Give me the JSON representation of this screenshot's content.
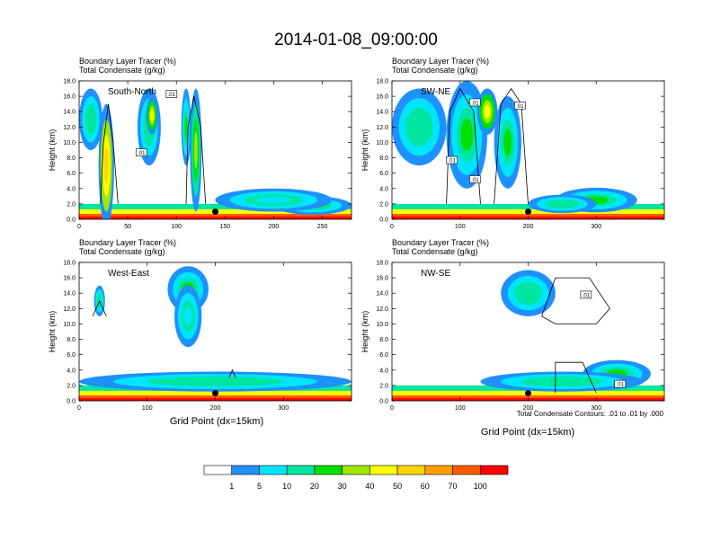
{
  "title": "2014-01-08_09:00:00",
  "panel_headers": {
    "line1_label": "Boundary Layer Tracer",
    "line1_unit": "(%)",
    "line2_label": "Total Condensate",
    "line2_unit": "(g/kg)"
  },
  "xlabel": "Grid Point (dx=15km)",
  "contour_note": "Total Condensate Contours: .01 to .01 by .000",
  "colorbar": {
    "levels": [
      "1",
      "5",
      "10",
      "20",
      "30",
      "40",
      "50",
      "60",
      "70",
      "100"
    ],
    "colors": [
      "#ffffff",
      "#1e90ff",
      "#00e5ff",
      "#00e5a0",
      "#00e000",
      "#a0e600",
      "#ffff00",
      "#ffd400",
      "#ffa000",
      "#ff5a00",
      "#ff0000"
    ]
  },
  "chart_data": [
    {
      "type": "heatmap",
      "subtitle": "South-North",
      "xlim": [
        0,
        280
      ],
      "xticks": [
        "0",
        "50",
        "100",
        "150",
        "200",
        "250"
      ],
      "xtick_values": [
        0,
        50,
        100,
        150,
        200,
        250
      ],
      "ylabel": "Height (km)",
      "ylim": [
        0,
        18
      ],
      "yticks": [
        "0.0",
        "2.0",
        "4.0",
        "6.0",
        "8.0",
        "10.0",
        "12.0",
        "14.0",
        "16.0",
        "18.0"
      ],
      "marker": {
        "x": 140,
        "y": 1.0
      },
      "contour_labels": [
        {
          "text": ".01",
          "x": 95,
          "y": 16.3
        },
        {
          "text": ".01",
          "x": 64,
          "y": 8.7
        }
      ],
      "blobs": [
        {
          "x": 28,
          "y": 7,
          "rx": 8,
          "ry": 8,
          "level": 7
        },
        {
          "x": 12,
          "y": 13,
          "rx": 12,
          "ry": 4,
          "level": 3
        },
        {
          "x": 72,
          "y": 12,
          "rx": 12,
          "ry": 5,
          "level": 3
        },
        {
          "x": 75,
          "y": 13.5,
          "rx": 6,
          "ry": 2.5,
          "level": 6
        },
        {
          "x": 120,
          "y": 9,
          "rx": 6,
          "ry": 8,
          "level": 5
        },
        {
          "x": 110,
          "y": 12,
          "rx": 5,
          "ry": 5,
          "level": 4
        },
        {
          "x": 240,
          "y": 1.8,
          "rx": 40,
          "ry": 1.2,
          "level": 4
        },
        {
          "x": 200,
          "y": 2.5,
          "rx": 60,
          "ry": 1.5,
          "level": 2
        }
      ],
      "contours": [
        {
          "points": [
            [
              22,
              2
            ],
            [
              25,
              10
            ],
            [
              30,
              15
            ],
            [
              35,
              10
            ],
            [
              40,
              2
            ]
          ]
        },
        {
          "points": [
            [
              110,
              2
            ],
            [
              112,
              12
            ],
            [
              118,
              16
            ],
            [
              125,
              12
            ],
            [
              130,
              2
            ]
          ]
        }
      ]
    },
    {
      "type": "heatmap",
      "subtitle": "SW-NE",
      "xlim": [
        0,
        400
      ],
      "xticks": [
        "0",
        "100",
        "200",
        "300"
      ],
      "xtick_values": [
        0,
        100,
        200,
        300
      ],
      "ylabel": "Height (km)",
      "ylim": [
        0,
        18
      ],
      "yticks": [
        "0.0",
        "2.0",
        "4.0",
        "6.0",
        "8.0",
        "10.0",
        "12.0",
        "14.0",
        "16.0",
        "18.0"
      ],
      "marker": {
        "x": 200,
        "y": 1.0
      },
      "contour_labels": [
        {
          "text": ".01",
          "x": 122,
          "y": 15.2
        },
        {
          "text": ".01",
          "x": 188,
          "y": 14.8
        },
        {
          "text": ".01",
          "x": 88,
          "y": 7.7
        },
        {
          "text": ".01",
          "x": 122,
          "y": 5.2
        }
      ],
      "blobs": [
        {
          "x": 40,
          "y": 12,
          "rx": 40,
          "ry": 5,
          "level": 3
        },
        {
          "x": 110,
          "y": 11,
          "rx": 30,
          "ry": 7,
          "level": 4
        },
        {
          "x": 140,
          "y": 14,
          "rx": 15,
          "ry": 3,
          "level": 6
        },
        {
          "x": 170,
          "y": 10,
          "rx": 20,
          "ry": 6,
          "level": 4
        },
        {
          "x": 300,
          "y": 2.5,
          "rx": 60,
          "ry": 1.6,
          "level": 4
        },
        {
          "x": 250,
          "y": 2.0,
          "rx": 50,
          "ry": 1.2,
          "level": 3
        }
      ],
      "contours": [
        {
          "points": [
            [
              80,
              2
            ],
            [
              85,
              14
            ],
            [
              100,
              17
            ],
            [
              120,
              14
            ],
            [
              130,
              2
            ]
          ]
        },
        {
          "points": [
            [
              150,
              2
            ],
            [
              160,
              15
            ],
            [
              175,
              17
            ],
            [
              190,
              15
            ],
            [
              200,
              2
            ]
          ]
        }
      ]
    },
    {
      "type": "heatmap",
      "subtitle": "West-East",
      "xlim": [
        0,
        400
      ],
      "xticks": [
        "0",
        "100",
        "200",
        "300"
      ],
      "xtick_values": [
        0,
        100,
        200,
        300
      ],
      "ylabel": "Height (km)",
      "ylim": [
        0,
        18
      ],
      "yticks": [
        "0.0",
        "2.0",
        "4.0",
        "6.0",
        "8.0",
        "10.0",
        "12.0",
        "14.0",
        "16.0",
        "18.0"
      ],
      "marker": {
        "x": 200,
        "y": 1.0
      },
      "contour_labels": [],
      "blobs": [
        {
          "x": 160,
          "y": 14.5,
          "rx": 30,
          "ry": 3,
          "level": 4
        },
        {
          "x": 160,
          "y": 11,
          "rx": 20,
          "ry": 4,
          "level": 2
        },
        {
          "x": 30,
          "y": 13,
          "rx": 8,
          "ry": 2,
          "level": 3
        },
        {
          "x": 200,
          "y": 2.5,
          "rx": 200,
          "ry": 1.3,
          "level": 3
        }
      ],
      "contours": [
        {
          "points": [
            [
              20,
              11
            ],
            [
              30,
              13
            ],
            [
              40,
              11
            ]
          ]
        },
        {
          "points": [
            [
              220,
              3
            ],
            [
              225,
              4
            ],
            [
              230,
              3
            ]
          ]
        }
      ]
    },
    {
      "type": "heatmap",
      "subtitle": "NW-SE",
      "xlim": [
        0,
        400
      ],
      "xticks": [
        "0",
        "100",
        "200",
        "300"
      ],
      "xtick_values": [
        0,
        100,
        200,
        300
      ],
      "ylabel": "Height (km)",
      "ylim": [
        0,
        18
      ],
      "yticks": [
        "0.0",
        "2.0",
        "4.0",
        "6.0",
        "8.0",
        "10.0",
        "12.0",
        "14.0",
        "16.0",
        "18.0"
      ],
      "marker": {
        "x": 200,
        "y": 1.0
      },
      "contour_labels": [
        {
          "text": ".01",
          "x": 285,
          "y": 13.8
        },
        {
          "text": ".01",
          "x": 335,
          "y": 2.2
        }
      ],
      "blobs": [
        {
          "x": 200,
          "y": 14,
          "rx": 40,
          "ry": 3,
          "level": 3
        },
        {
          "x": 330,
          "y": 3.5,
          "rx": 50,
          "ry": 1.8,
          "level": 4
        },
        {
          "x": 250,
          "y": 2.5,
          "rx": 120,
          "ry": 1.3,
          "level": 3
        }
      ],
      "contours": [
        {
          "points": [
            [
              220,
              11
            ],
            [
              240,
              16
            ],
            [
              290,
              16
            ],
            [
              320,
              12
            ],
            [
              300,
              10
            ],
            [
              240,
              10
            ],
            [
              220,
              11
            ]
          ]
        },
        {
          "points": [
            [
              240,
              1
            ],
            [
              240,
              5
            ],
            [
              280,
              5
            ],
            [
              300,
              1
            ]
          ]
        }
      ]
    }
  ]
}
